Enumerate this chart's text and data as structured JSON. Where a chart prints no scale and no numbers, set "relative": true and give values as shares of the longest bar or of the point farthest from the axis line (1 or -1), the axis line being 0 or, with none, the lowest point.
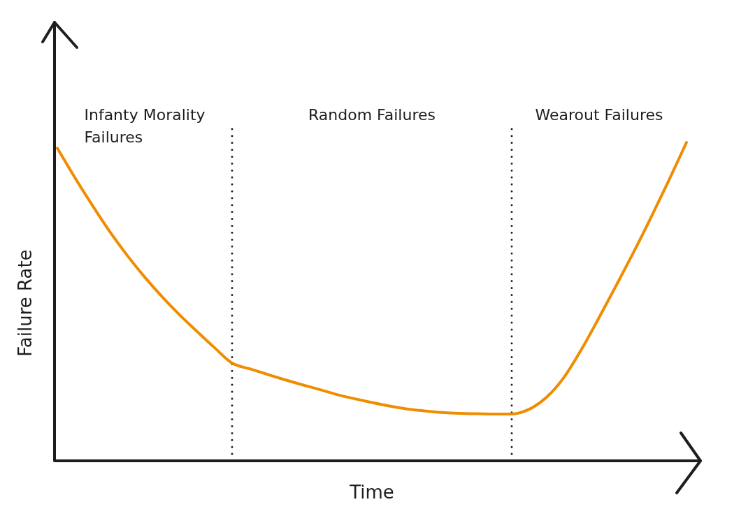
{
  "chart_data": {
    "type": "line",
    "xlabel": "Time",
    "ylabel": "Failure Rate",
    "categories": [
      null,
      null,
      null,
      null,
      null,
      null,
      null,
      null,
      null,
      null,
      null,
      null,
      null,
      null,
      null,
      null,
      null,
      null,
      null,
      null,
      null,
      null,
      null,
      null,
      null,
      null,
      null,
      null,
      null,
      null,
      null,
      null,
      null,
      null,
      null,
      null,
      null
    ],
    "values": [
      0.982,
      0.89,
      0.803,
      0.72,
      0.645,
      0.577,
      0.515,
      0.458,
      0.406,
      0.355,
      0.307,
      0.289,
      0.272,
      0.255,
      0.239,
      0.224,
      0.208,
      0.195,
      0.183,
      0.172,
      0.163,
      0.157,
      0.152,
      0.149,
      0.148,
      0.147,
      0.147,
      0.162,
      0.2,
      0.263,
      0.351,
      0.45,
      0.553,
      0.658,
      0.768,
      0.882,
      1
    ],
    "color": "#f08c00",
    "relative": true,
    "tick_labels": false,
    "annotations": [
      "Infanty Morality Failures",
      "Random Failures",
      "Wearout Failures"
    ]
  }
}
